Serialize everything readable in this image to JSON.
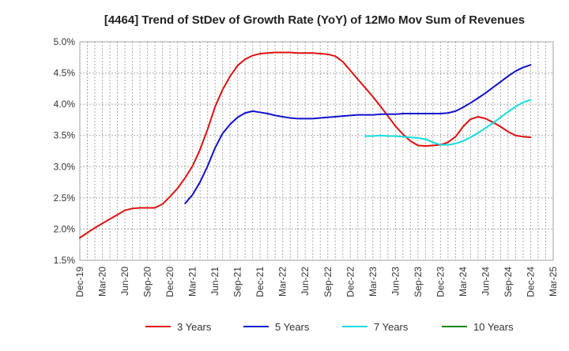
{
  "chart_data": {
    "type": "line",
    "title": "[4464]  Trend of StDev of Growth Rate (YoY) of 12Mo Mov Sum of Revenues",
    "xlabel": "",
    "ylabel": "",
    "ylim": [
      1.5,
      5.0
    ],
    "yticks": [
      1.5,
      2.0,
      2.5,
      3.0,
      3.5,
      4.0,
      4.5,
      5.0
    ],
    "ytick_labels": [
      "1.5%",
      "2.0%",
      "2.5%",
      "3.0%",
      "3.5%",
      "4.0%",
      "4.5%",
      "5.0%"
    ],
    "categories": [
      "Dec-19",
      "Mar-20",
      "Jun-20",
      "Sep-20",
      "Dec-20",
      "Mar-21",
      "Jun-21",
      "Sep-21",
      "Dec-21",
      "Mar-22",
      "Jun-22",
      "Sep-22",
      "Dec-22",
      "Mar-23",
      "Jun-23",
      "Sep-23",
      "Dec-23",
      "Mar-24",
      "Jun-24",
      "Sep-24",
      "Dec-24",
      "Mar-25"
    ],
    "grid": true,
    "legend_position": "bottom",
    "series": [
      {
        "name": "3 Years",
        "color": "#dd1111",
        "points": [
          [
            0,
            1.86
          ],
          [
            0.33,
            1.94
          ],
          [
            0.67,
            2.02
          ],
          [
            1,
            2.09
          ],
          [
            1.33,
            2.16
          ],
          [
            1.67,
            2.23
          ],
          [
            2,
            2.3
          ],
          [
            2.33,
            2.33
          ],
          [
            2.67,
            2.34
          ],
          [
            3,
            2.34
          ],
          [
            3.33,
            2.34
          ],
          [
            3.67,
            2.4
          ],
          [
            4,
            2.52
          ],
          [
            4.33,
            2.65
          ],
          [
            4.67,
            2.82
          ],
          [
            5,
            3.01
          ],
          [
            5.33,
            3.27
          ],
          [
            5.67,
            3.6
          ],
          [
            6,
            3.96
          ],
          [
            6.33,
            4.23
          ],
          [
            6.67,
            4.45
          ],
          [
            7,
            4.62
          ],
          [
            7.33,
            4.72
          ],
          [
            7.67,
            4.78
          ],
          [
            8,
            4.81
          ],
          [
            8.33,
            4.82
          ],
          [
            8.67,
            4.83
          ],
          [
            9,
            4.83
          ],
          [
            9.33,
            4.83
          ],
          [
            9.67,
            4.82
          ],
          [
            10,
            4.82
          ],
          [
            10.33,
            4.82
          ],
          [
            10.67,
            4.81
          ],
          [
            11,
            4.8
          ],
          [
            11.33,
            4.77
          ],
          [
            11.67,
            4.68
          ],
          [
            12,
            4.54
          ],
          [
            12.33,
            4.4
          ],
          [
            12.67,
            4.26
          ],
          [
            13,
            4.12
          ],
          [
            13.33,
            3.97
          ],
          [
            13.67,
            3.81
          ],
          [
            14,
            3.65
          ],
          [
            14.33,
            3.52
          ],
          [
            14.67,
            3.41
          ],
          [
            15,
            3.34
          ],
          [
            15.33,
            3.33
          ],
          [
            15.67,
            3.34
          ],
          [
            16,
            3.35
          ],
          [
            16.33,
            3.39
          ],
          [
            16.67,
            3.48
          ],
          [
            17,
            3.64
          ],
          [
            17.33,
            3.76
          ],
          [
            17.67,
            3.8
          ],
          [
            18,
            3.77
          ],
          [
            18.33,
            3.71
          ],
          [
            18.67,
            3.64
          ],
          [
            19,
            3.56
          ],
          [
            19.33,
            3.5
          ],
          [
            19.67,
            3.48
          ],
          [
            20,
            3.47
          ]
        ]
      },
      {
        "name": "5 Years",
        "color": "#1111cc",
        "points": [
          [
            4.67,
            2.41
          ],
          [
            5,
            2.55
          ],
          [
            5.33,
            2.75
          ],
          [
            5.67,
            3.01
          ],
          [
            6,
            3.3
          ],
          [
            6.33,
            3.53
          ],
          [
            6.67,
            3.68
          ],
          [
            7,
            3.79
          ],
          [
            7.33,
            3.86
          ],
          [
            7.67,
            3.89
          ],
          [
            8,
            3.87
          ],
          [
            8.33,
            3.85
          ],
          [
            8.67,
            3.82
          ],
          [
            9,
            3.8
          ],
          [
            9.33,
            3.78
          ],
          [
            9.67,
            3.77
          ],
          [
            10,
            3.77
          ],
          [
            10.33,
            3.77
          ],
          [
            10.67,
            3.78
          ],
          [
            11,
            3.79
          ],
          [
            11.33,
            3.8
          ],
          [
            11.67,
            3.81
          ],
          [
            12,
            3.82
          ],
          [
            12.33,
            3.83
          ],
          [
            12.67,
            3.83
          ],
          [
            13,
            3.83
          ],
          [
            13.33,
            3.84
          ],
          [
            13.67,
            3.84
          ],
          [
            14,
            3.84
          ],
          [
            14.33,
            3.85
          ],
          [
            14.67,
            3.85
          ],
          [
            15,
            3.85
          ],
          [
            15.33,
            3.85
          ],
          [
            15.67,
            3.85
          ],
          [
            16,
            3.85
          ],
          [
            16.33,
            3.86
          ],
          [
            16.67,
            3.89
          ],
          [
            17,
            3.95
          ],
          [
            17.33,
            4.02
          ],
          [
            17.67,
            4.1
          ],
          [
            18,
            4.18
          ],
          [
            18.33,
            4.27
          ],
          [
            18.67,
            4.36
          ],
          [
            19,
            4.45
          ],
          [
            19.33,
            4.53
          ],
          [
            19.67,
            4.59
          ],
          [
            20,
            4.63
          ]
        ]
      },
      {
        "name": "7 Years",
        "color": "#11dddd",
        "points": [
          [
            12.67,
            3.49
          ],
          [
            13,
            3.49
          ],
          [
            13.33,
            3.5
          ],
          [
            13.67,
            3.49
          ],
          [
            14,
            3.49
          ],
          [
            14.33,
            3.48
          ],
          [
            14.67,
            3.47
          ],
          [
            15,
            3.46
          ],
          [
            15.33,
            3.44
          ],
          [
            15.67,
            3.39
          ],
          [
            16,
            3.35
          ],
          [
            16.33,
            3.35
          ],
          [
            16.67,
            3.37
          ],
          [
            17,
            3.41
          ],
          [
            17.33,
            3.47
          ],
          [
            17.67,
            3.54
          ],
          [
            18,
            3.62
          ],
          [
            18.33,
            3.7
          ],
          [
            18.67,
            3.79
          ],
          [
            19,
            3.88
          ],
          [
            19.33,
            3.96
          ],
          [
            19.67,
            4.03
          ],
          [
            20,
            4.07
          ]
        ]
      },
      {
        "name": "10 Years",
        "color": "#118811",
        "points": []
      }
    ]
  }
}
